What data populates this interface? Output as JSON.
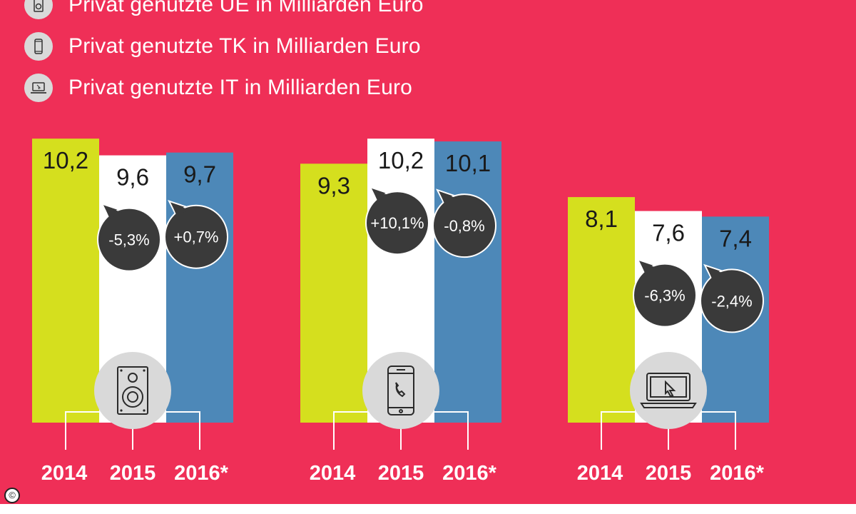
{
  "legend": {
    "items": [
      {
        "label": "Privat genutzte UE in Milliarden Euro",
        "icon": "speaker-icon"
      },
      {
        "label": "Privat genutzte TK in Milliarden Euro",
        "icon": "smartphone-icon"
      },
      {
        "label": "Privat genutzte IT in Milliarden Euro",
        "icon": "laptop-icon"
      }
    ]
  },
  "colors": {
    "background": "#ef2f57",
    "bar_2014": "#d5df1e",
    "bar_2015": "#ffffff",
    "bar_2016": "#4d88b8",
    "bubble": "#3a3a3a",
    "icon_circle": "#d9d9d9"
  },
  "copyright": "©",
  "chart_data": [
    {
      "type": "bar",
      "group": "UE",
      "icon": "speaker-icon",
      "categories": [
        "2014",
        "2015",
        "2016*"
      ],
      "values": [
        10.2,
        9.6,
        9.7
      ],
      "value_labels": [
        "10,2",
        "9,6",
        "9,7"
      ],
      "changes": [
        "",
        "-5,3%",
        "+0,7%"
      ]
    },
    {
      "type": "bar",
      "group": "TK",
      "icon": "smartphone-icon",
      "categories": [
        "2014",
        "2015",
        "2016*"
      ],
      "values": [
        9.3,
        10.2,
        10.1
      ],
      "value_labels": [
        "9,3",
        "10,2",
        "10,1"
      ],
      "changes": [
        "",
        "+10,1%",
        "-0,8%"
      ]
    },
    {
      "type": "bar",
      "group": "IT",
      "icon": "laptop-icon",
      "categories": [
        "2014",
        "2015",
        "2016*"
      ],
      "values": [
        8.1,
        7.6,
        7.4
      ],
      "value_labels": [
        "8,1",
        "7,6",
        "7,4"
      ],
      "changes": [
        "",
        "-6,3%",
        "-2,4%"
      ]
    }
  ]
}
